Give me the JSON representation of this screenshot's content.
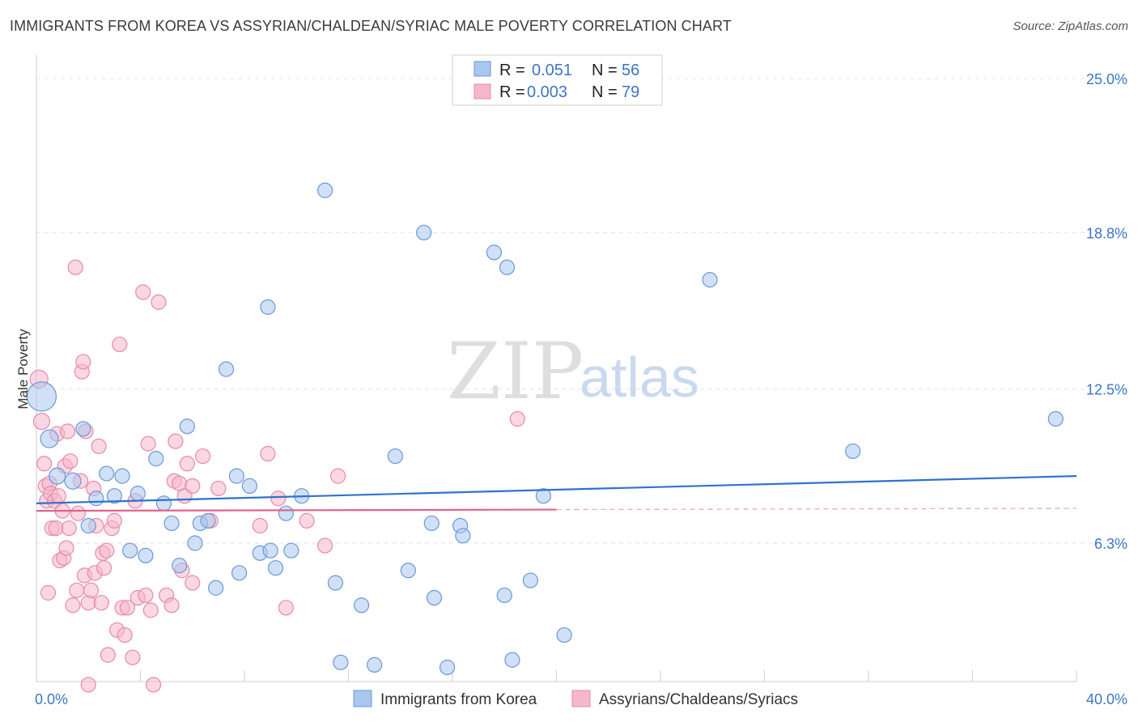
{
  "header": {
    "title": "IMMIGRANTS FROM KOREA VS ASSYRIAN/CHALDEAN/SYRIAC MALE POVERTY CORRELATION CHART",
    "source": "Source: ZipAtlas.com"
  },
  "watermark": {
    "zip": "ZIP",
    "atlas": "atlas"
  },
  "legend": {
    "r_label": "R =",
    "n_label": "N =",
    "rows": [
      {
        "r": "0.051",
        "n": "56"
      },
      {
        "r": "0.003",
        "n": "79"
      }
    ]
  },
  "colors": {
    "blue_fill": "#a9c6ee",
    "blue_stroke": "#6a98d8",
    "blue_line": "#2f72d0",
    "pink_fill": "#f6b7cb",
    "pink_stroke": "#e88aa8",
    "pink_line": "#e0628a",
    "grid": "#e2e2e2",
    "axis_label": "#3d75c6"
  },
  "chart_data": {
    "type": "scatter",
    "title": "IMMIGRANTS FROM KOREA VS ASSYRIAN/CHALDEAN/SYRIAC MALE POVERTY CORRELATION CHART",
    "xlabel": "",
    "ylabel": "Male Poverty",
    "xlim": [
      0,
      40
    ],
    "ylim": [
      0,
      25.8
    ],
    "x_tick_labels": [
      {
        "value": 0,
        "label": "0.0%"
      },
      {
        "value": 40,
        "label": "40.0%"
      }
    ],
    "x_minor_ticks": [
      4,
      8,
      12,
      16,
      20,
      24,
      28,
      32,
      36,
      40
    ],
    "y_ticks": [
      {
        "value": 6.3,
        "label": "6.3%"
      },
      {
        "value": 12.5,
        "label": "12.5%"
      },
      {
        "value": 18.8,
        "label": "18.8%"
      },
      {
        "value": 25.0,
        "label": "25.0%"
      }
    ],
    "series": [
      {
        "name": "Immigrants from Korea",
        "color": "blue",
        "trend": {
          "x0": 0,
          "y0": 7.9,
          "x1": 40,
          "y1": 9.0,
          "solid_until": 40
        },
        "points": [
          [
            0.2,
            12.2,
            18
          ],
          [
            0.5,
            10.5,
            11
          ],
          [
            0.8,
            9.0,
            10
          ],
          [
            1.4,
            8.8,
            10
          ],
          [
            1.8,
            10.9,
            9
          ],
          [
            2.0,
            7.0,
            9
          ],
          [
            2.3,
            8.1,
            9
          ],
          [
            2.7,
            9.1,
            9
          ],
          [
            3.0,
            8.2,
            9
          ],
          [
            3.3,
            9.0,
            9
          ],
          [
            3.6,
            6.0,
            9
          ],
          [
            3.9,
            8.3,
            9
          ],
          [
            4.2,
            5.8,
            9
          ],
          [
            4.6,
            9.7,
            9
          ],
          [
            4.9,
            7.9,
            9
          ],
          [
            5.2,
            7.1,
            9
          ],
          [
            5.5,
            5.4,
            9
          ],
          [
            5.8,
            11.0,
            9
          ],
          [
            6.1,
            6.3,
            9
          ],
          [
            6.3,
            7.1,
            9
          ],
          [
            6.6,
            7.2,
            9
          ],
          [
            6.9,
            4.5,
            9
          ],
          [
            7.3,
            13.3,
            9
          ],
          [
            7.7,
            9.0,
            9
          ],
          [
            7.8,
            5.1,
            9
          ],
          [
            8.2,
            8.6,
            9
          ],
          [
            8.6,
            5.9,
            9
          ],
          [
            8.9,
            15.8,
            9
          ],
          [
            9.2,
            5.3,
            9
          ],
          [
            9.6,
            7.5,
            9
          ],
          [
            9.8,
            6.0,
            9
          ],
          [
            10.2,
            8.2,
            9
          ],
          [
            11.1,
            20.5,
            9
          ],
          [
            11.5,
            4.7,
            9
          ],
          [
            11.7,
            1.5,
            9
          ],
          [
            12.5,
            3.8,
            9
          ],
          [
            13.0,
            1.4,
            9
          ],
          [
            13.8,
            9.8,
            9
          ],
          [
            14.3,
            5.2,
            9
          ],
          [
            14.9,
            18.8,
            9
          ],
          [
            15.2,
            7.1,
            9
          ],
          [
            15.3,
            4.1,
            9
          ],
          [
            15.8,
            1.3,
            9
          ],
          [
            16.3,
            7.0,
            9
          ],
          [
            16.4,
            6.6,
            9
          ],
          [
            17.6,
            18.0,
            9
          ],
          [
            18.0,
            4.2,
            9
          ],
          [
            18.1,
            17.4,
            9
          ],
          [
            18.3,
            1.6,
            9
          ],
          [
            19.0,
            4.8,
            9
          ],
          [
            19.5,
            8.2,
            9
          ],
          [
            20.3,
            2.6,
            9
          ],
          [
            25.9,
            16.9,
            9
          ],
          [
            31.4,
            10.0,
            9
          ],
          [
            39.2,
            11.3,
            9
          ],
          [
            9.0,
            6.0,
            9
          ]
        ]
      },
      {
        "name": "Assyrians/Chaldeans/Syriacs",
        "color": "pink",
        "trend": {
          "x0": 0,
          "y0": 7.6,
          "x1": 40,
          "y1": 7.7,
          "solid_until": 20
        },
        "points": [
          [
            0.1,
            12.9,
            11
          ],
          [
            0.2,
            11.2,
            10
          ],
          [
            0.3,
            9.5,
            9
          ],
          [
            0.35,
            8.6,
            9
          ],
          [
            0.4,
            8.0,
            9
          ],
          [
            0.5,
            8.7,
            9
          ],
          [
            0.55,
            8.3,
            9
          ],
          [
            0.6,
            6.9,
            9
          ],
          [
            0.7,
            8.0,
            9
          ],
          [
            0.75,
            6.9,
            9
          ],
          [
            0.8,
            10.7,
            9
          ],
          [
            0.85,
            8.2,
            9
          ],
          [
            0.9,
            5.6,
            9
          ],
          [
            1.0,
            7.6,
            9
          ],
          [
            1.05,
            5.7,
            9
          ],
          [
            1.1,
            9.4,
            9
          ],
          [
            1.2,
            10.8,
            9
          ],
          [
            1.3,
            9.6,
            9
          ],
          [
            1.25,
            6.9,
            9
          ],
          [
            1.4,
            3.8,
            9
          ],
          [
            1.5,
            17.4,
            9
          ],
          [
            1.55,
            4.4,
            9
          ],
          [
            1.6,
            7.5,
            9
          ],
          [
            1.7,
            8.8,
            9
          ],
          [
            1.75,
            13.2,
            9
          ],
          [
            1.8,
            13.6,
            9
          ],
          [
            1.85,
            5.0,
            9
          ],
          [
            1.9,
            10.8,
            9
          ],
          [
            2.0,
            3.9,
            9
          ],
          [
            2.1,
            4.4,
            9
          ],
          [
            2.2,
            8.5,
            9
          ],
          [
            2.25,
            5.1,
            9
          ],
          [
            2.3,
            7.0,
            9
          ],
          [
            2.4,
            10.2,
            9
          ],
          [
            2.5,
            3.9,
            9
          ],
          [
            2.55,
            5.9,
            9
          ],
          [
            2.6,
            5.3,
            9
          ],
          [
            2.7,
            6.0,
            9
          ],
          [
            2.75,
            1.8,
            9
          ],
          [
            2.9,
            6.9,
            9
          ],
          [
            3.0,
            7.2,
            9
          ],
          [
            3.1,
            2.8,
            9
          ],
          [
            3.2,
            14.3,
            9
          ],
          [
            3.3,
            3.7,
            9
          ],
          [
            3.4,
            2.6,
            9
          ],
          [
            3.5,
            3.7,
            9
          ],
          [
            3.7,
            1.7,
            9
          ],
          [
            3.8,
            8.0,
            9
          ],
          [
            3.9,
            4.1,
            9
          ],
          [
            4.1,
            16.4,
            9
          ],
          [
            4.2,
            4.2,
            9
          ],
          [
            4.3,
            10.3,
            9
          ],
          [
            4.4,
            3.6,
            9
          ],
          [
            4.5,
            0.6,
            9
          ],
          [
            4.7,
            16.0,
            9
          ],
          [
            5.0,
            4.2,
            9
          ],
          [
            5.2,
            3.8,
            9
          ],
          [
            5.3,
            8.8,
            9
          ],
          [
            5.35,
            10.4,
            9
          ],
          [
            5.5,
            8.7,
            9
          ],
          [
            5.6,
            5.2,
            9
          ],
          [
            5.7,
            8.2,
            9
          ],
          [
            5.8,
            9.5,
            9
          ],
          [
            6.0,
            4.7,
            9
          ],
          [
            6.0,
            8.6,
            9
          ],
          [
            6.4,
            9.8,
            9
          ],
          [
            6.7,
            7.2,
            9
          ],
          [
            7.0,
            8.5,
            9
          ],
          [
            8.6,
            7.0,
            9
          ],
          [
            8.9,
            9.9,
            9
          ],
          [
            9.3,
            8.1,
            9
          ],
          [
            9.6,
            3.7,
            9
          ],
          [
            10.4,
            7.2,
            9
          ],
          [
            11.1,
            6.2,
            9
          ],
          [
            11.6,
            9.0,
            9
          ],
          [
            18.5,
            11.3,
            9
          ],
          [
            2.0,
            0.6,
            9
          ],
          [
            0.45,
            4.3,
            9
          ],
          [
            1.15,
            6.1,
            9
          ]
        ]
      }
    ],
    "legend_entries": [
      "Immigrants from Korea",
      "Assyrians/Chaldeans/Syriacs"
    ],
    "grid": true
  }
}
